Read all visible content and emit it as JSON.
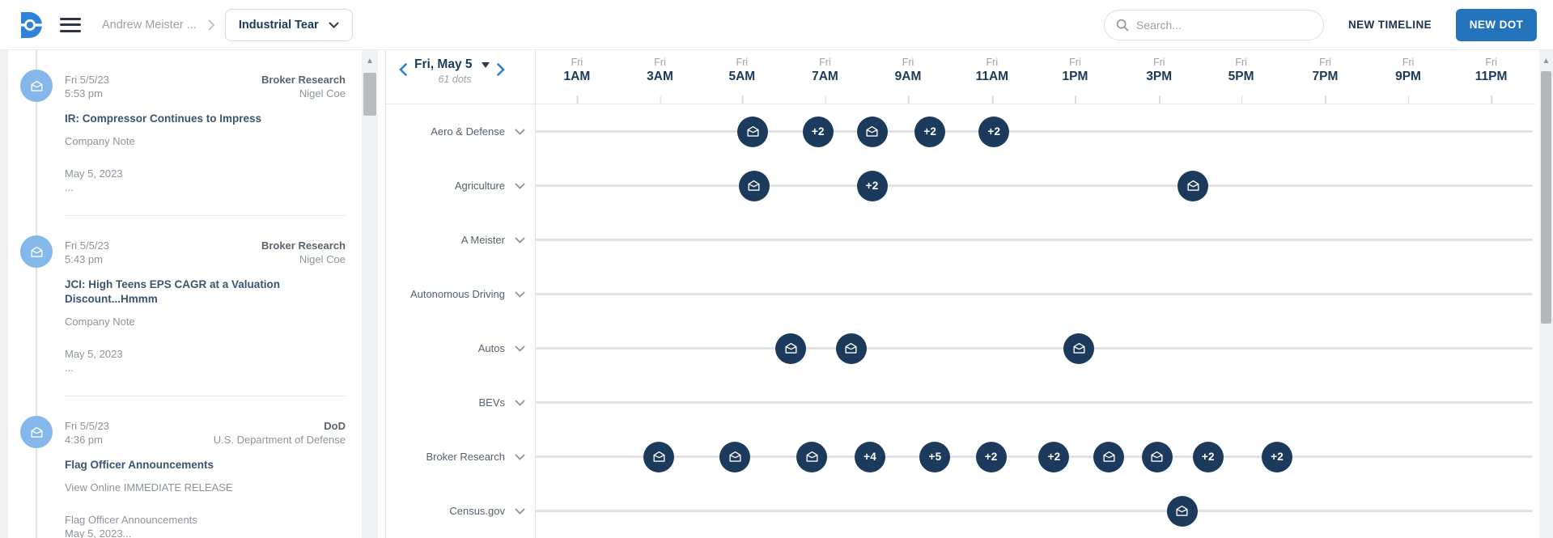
{
  "topbar": {
    "breadcrumb": "Andrew Meister ...",
    "timeline_select": "Industrial Tear",
    "search_placeholder": "Search...",
    "new_timeline_label": "NEW TIMELINE",
    "new_dot_label": "NEW DOT"
  },
  "colors": {
    "brand_blue": "#2e82d8",
    "button_blue": "#2273bb",
    "dot_navy": "#1b3a5c",
    "avatar_blue": "#85b7ea",
    "row_line_gray": "#e0e2e4"
  },
  "sidebar": {
    "cards": [
      {
        "date": "Fri 5/5/23",
        "time": "5:53 pm",
        "source": "Broker Research",
        "author": "Nigel Coe",
        "title": "IR: Compressor Continues to Impress",
        "subtitle": "Company Note",
        "meta1": "May 5, 2023",
        "meta2": "..."
      },
      {
        "date": "Fri 5/5/23",
        "time": "5:43 pm",
        "source": "Broker Research",
        "author": "Nigel Coe",
        "title": "JCI: High Teens EPS CAGR at a Valuation Discount...Hmmm",
        "subtitle": "Company Note",
        "meta1": "May 5, 2023",
        "meta2": "..."
      },
      {
        "date": "Fri 5/5/23",
        "time": "4:36 pm",
        "source": "DoD",
        "author": "U.S. Department of Defense",
        "title": "Flag Officer Announcements",
        "subtitle": "View Online IMMEDIATE RELEASE",
        "meta1": "Flag Officer Announcements",
        "meta2": "May 5, 2023..."
      }
    ]
  },
  "timeline": {
    "date_label": "Fri, May 5",
    "dots_count_label": "61 dots",
    "ticks": [
      {
        "day": "Fri",
        "time": "1AM",
        "pct": 4.2
      },
      {
        "day": "Fri",
        "time": "3AM",
        "pct": 12.5
      },
      {
        "day": "Fri",
        "time": "5AM",
        "pct": 20.7
      },
      {
        "day": "Fri",
        "time": "7AM",
        "pct": 29.0
      },
      {
        "day": "Fri",
        "time": "9AM",
        "pct": 37.3
      },
      {
        "day": "Fri",
        "time": "11AM",
        "pct": 45.7
      },
      {
        "day": "Fri",
        "time": "1PM",
        "pct": 54.0
      },
      {
        "day": "Fri",
        "time": "3PM",
        "pct": 62.4
      },
      {
        "day": "Fri",
        "time": "5PM",
        "pct": 70.6
      },
      {
        "day": "Fri",
        "time": "7PM",
        "pct": 79.0
      },
      {
        "day": "Fri",
        "time": "9PM",
        "pct": 87.3
      },
      {
        "day": "Fri",
        "time": "11PM",
        "pct": 95.6
      }
    ],
    "rows": [
      {
        "label": "Aero & Defense",
        "slug": "aero-defense",
        "dots": [
          {
            "type": "mail",
            "pct": 21.8
          },
          {
            "type": "count",
            "label": "+2",
            "pct": 28.3
          },
          {
            "type": "mail",
            "pct": 33.7
          },
          {
            "type": "count",
            "label": "+2",
            "pct": 39.5
          },
          {
            "type": "count",
            "label": "+2",
            "pct": 45.9
          }
        ]
      },
      {
        "label": "Agriculture",
        "slug": "agriculture",
        "dots": [
          {
            "type": "mail",
            "pct": 21.9
          },
          {
            "type": "count",
            "label": "+2",
            "pct": 33.7
          },
          {
            "type": "mail",
            "pct": 65.8
          }
        ]
      },
      {
        "label": "A Meister",
        "slug": "a-meister",
        "dots": []
      },
      {
        "label": "Autonomous Driving",
        "slug": "autonomous-driving",
        "dots": []
      },
      {
        "label": "Autos",
        "slug": "autos",
        "dots": [
          {
            "type": "mail",
            "pct": 25.6
          },
          {
            "type": "mail",
            "pct": 31.6
          },
          {
            "type": "mail",
            "pct": 54.4
          }
        ]
      },
      {
        "label": "BEVs",
        "slug": "bevs",
        "dots": []
      },
      {
        "label": "Broker Research",
        "slug": "broker-research",
        "dots": [
          {
            "type": "mail",
            "pct": 12.4
          },
          {
            "type": "mail",
            "pct": 20.0
          },
          {
            "type": "mail",
            "pct": 27.7
          },
          {
            "type": "count",
            "label": "+4",
            "pct": 33.5
          },
          {
            "type": "count",
            "label": "+5",
            "pct": 40.0
          },
          {
            "type": "count",
            "label": "+2",
            "pct": 45.6
          },
          {
            "type": "count",
            "label": "+2",
            "pct": 51.9
          },
          {
            "type": "mail",
            "pct": 57.4
          },
          {
            "type": "mail",
            "pct": 62.2
          },
          {
            "type": "count",
            "label": "+2",
            "pct": 67.3
          },
          {
            "type": "count",
            "label": "+2",
            "pct": 74.2
          }
        ]
      },
      {
        "label": "Census.gov",
        "slug": "census-gov",
        "dots": [
          {
            "type": "mail",
            "pct": 64.7
          }
        ]
      }
    ]
  }
}
